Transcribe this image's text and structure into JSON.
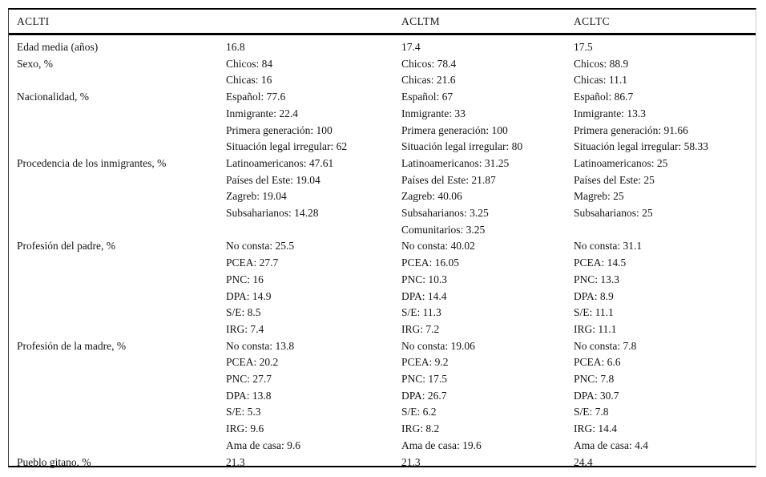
{
  "page": {
    "background_color": "#ffffff",
    "text_color": "#141414",
    "rule_color": "#000000"
  },
  "table": {
    "columns": [
      "ACLTI",
      "",
      "ACLTM",
      "ACLTC"
    ],
    "rows": [
      {
        "label": "Edad media (años)",
        "cells": [
          [
            "16.8"
          ],
          [
            "17.4"
          ],
          [
            "17.5"
          ]
        ]
      },
      {
        "label": "Sexo, %",
        "cells": [
          [
            "Chicos: 84",
            "Chicas: 16"
          ],
          [
            "Chicos: 78.4",
            "Chicas: 21.6"
          ],
          [
            "Chicos: 88.9",
            "Chicas: 11.1"
          ]
        ]
      },
      {
        "label": "Nacionalidad, %",
        "cells": [
          [
            "Español: 77.6",
            "Inmigrante: 22.4",
            "Primera generación: 100",
            "Situación legal irregular: 62"
          ],
          [
            "Español: 67",
            "Inmigrante: 33",
            "Primera generación: 100",
            "Situación legal irregular: 80"
          ],
          [
            "Español: 86.7",
            "Inmigrante: 13.3",
            "Primera generación: 91.66",
            "Situación legal irregular: 58.33"
          ]
        ]
      },
      {
        "label": "Procedencia de los inmigrantes, %",
        "cells": [
          [
            "Latinoamericanos: 47.61",
            "Países del Este: 19.04",
            "Zagreb: 19.04",
            "Subsaharianos: 14.28"
          ],
          [
            "Latinoamericanos: 31.25",
            "Países del Este: 21.87",
            "Zagreb: 40.06",
            "Subsaharianos: 3.25",
            "Comunitarios: 3.25"
          ],
          [
            "Latinoamericanos: 25",
            "Países del Este: 25",
            "Magreb: 25",
            "Subsaharianos: 25"
          ]
        ]
      },
      {
        "label": "Profesión del padre, %",
        "cells": [
          [
            "No consta: 25.5",
            "PCEA: 27.7",
            "PNC: 16",
            "DPA: 14.9",
            "S/E: 8.5",
            "IRG: 7.4"
          ],
          [
            "No consta: 40.02",
            "PCEA: 16.05",
            "PNC: 10.3",
            "DPA: 14.4",
            "S/E: 11.3",
            "IRG: 7.2"
          ],
          [
            "No consta: 31.1",
            "PCEA: 14.5",
            "PNC: 13.3",
            "DPA: 8.9",
            "S/E: 11.1",
            "IRG: 11.1"
          ]
        ]
      },
      {
        "label": "Profesión de la madre, %",
        "cells": [
          [
            "No consta: 13.8",
            "PCEA: 20.2",
            "PNC: 27.7",
            "DPA: 13.8",
            "S/E: 5.3",
            "IRG: 9.6",
            "Ama de casa: 9.6"
          ],
          [
            "No consta: 19.06",
            "PCEA: 9.2",
            "PNC: 17.5",
            "DPA: 26.7",
            "S/E: 6.2",
            "IRG: 8.2",
            "Ama de casa: 19.6"
          ],
          [
            "No consta: 7.8",
            "PCEA: 6.6",
            "PNC: 7.8",
            "DPA: 30.7",
            "S/E: 7.8",
            "IRG: 14.4",
            "Ama de casa: 4.4"
          ]
        ]
      },
      {
        "label": "Pueblo gitano, %",
        "cells": [
          [
            "21.3"
          ],
          [
            "21.3"
          ],
          [
            "24.4"
          ]
        ]
      }
    ]
  }
}
